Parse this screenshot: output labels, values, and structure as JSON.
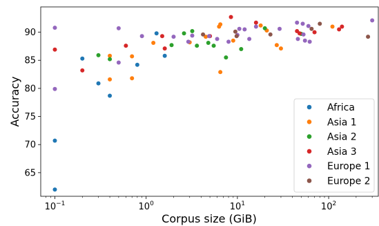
{
  "chart_data": {
    "type": "scatter",
    "title": "",
    "xlabel": "Corpus size (GiB)",
    "ylabel": "Accuracy",
    "xscale": "log",
    "xlim": [
      0.07,
      350
    ],
    "ylim": [
      60.8,
      94.5
    ],
    "xticks": [
      {
        "value": 0.1,
        "base": "10",
        "exp": "−1"
      },
      {
        "value": 1,
        "base": "10",
        "exp": "0"
      },
      {
        "value": 10,
        "base": "10",
        "exp": "1"
      },
      {
        "value": 100,
        "base": "10",
        "exp": "2"
      }
    ],
    "yticks": [
      65,
      70,
      75,
      80,
      85,
      90
    ],
    "grid": false,
    "legend_position": "lower right",
    "series": [
      {
        "name": "Africa",
        "color": "#1f77b4",
        "points": [
          [
            0.1,
            62.0
          ],
          [
            0.1,
            70.7
          ],
          [
            0.2,
            85.3
          ],
          [
            0.3,
            80.9
          ],
          [
            0.4,
            78.7
          ],
          [
            0.8,
            84.2
          ],
          [
            1.3,
            89.8
          ],
          [
            1.6,
            85.8
          ]
        ]
      },
      {
        "name": "Asia 1",
        "color": "#ff7f0e",
        "points": [
          [
            0.4,
            85.8
          ],
          [
            0.4,
            81.6
          ],
          [
            0.7,
            85.7
          ],
          [
            0.7,
            81.8
          ],
          [
            1.2,
            88.1
          ],
          [
            3.0,
            88.2
          ],
          [
            4.5,
            89.2
          ],
          [
            6.3,
            91.0
          ],
          [
            6.5,
            82.9
          ],
          [
            6.5,
            91.4
          ],
          [
            9.0,
            88.5
          ],
          [
            18.0,
            91.2
          ],
          [
            21.0,
            90.3
          ],
          [
            27.0,
            87.7
          ],
          [
            30.0,
            87.1
          ],
          [
            110.0,
            91.0
          ]
        ]
      },
      {
        "name": "Asia 2",
        "color": "#2ca02c",
        "points": [
          [
            0.3,
            85.9
          ],
          [
            0.4,
            85.2
          ],
          [
            1.9,
            87.7
          ],
          [
            2.6,
            89.8
          ],
          [
            3.2,
            90.2
          ],
          [
            3.6,
            87.6
          ],
          [
            4.8,
            88.1
          ],
          [
            5.5,
            87.6
          ],
          [
            7.5,
            85.5
          ],
          [
            11.0,
            87.0
          ],
          [
            20.0,
            90.7
          ],
          [
            50.0,
            89.7
          ]
        ]
      },
      {
        "name": "Asia 3",
        "color": "#d62728",
        "points": [
          [
            0.1,
            86.9
          ],
          [
            0.2,
            83.2
          ],
          [
            0.6,
            87.6
          ],
          [
            1.6,
            87.1
          ],
          [
            1.5,
            89.3
          ],
          [
            5.0,
            89.3
          ],
          [
            8.5,
            92.7
          ],
          [
            16.0,
            91.7
          ],
          [
            45.0,
            90.2
          ],
          [
            48.0,
            89.8
          ],
          [
            70.0,
            90.0
          ],
          [
            130.0,
            90.5
          ],
          [
            140.0,
            91.0
          ]
        ]
      },
      {
        "name": "Europe 1",
        "color": "#9467bd",
        "points": [
          [
            0.1,
            90.8
          ],
          [
            0.1,
            79.9
          ],
          [
            0.5,
            90.7
          ],
          [
            0.5,
            84.6
          ],
          [
            0.9,
            89.3
          ],
          [
            2.0,
            89.2
          ],
          [
            2.9,
            88.3
          ],
          [
            3.2,
            89.4
          ],
          [
            4.9,
            89.3
          ],
          [
            6.0,
            88.8
          ],
          [
            8.0,
            88.3
          ],
          [
            10.0,
            89.5
          ],
          [
            10.5,
            90.6
          ],
          [
            12.0,
            90.5
          ],
          [
            13.5,
            88.8
          ],
          [
            16.0,
            91.0
          ],
          [
            29.0,
            90.6
          ],
          [
            45.0,
            91.7
          ],
          [
            46.0,
            88.8
          ],
          [
            52.0,
            91.5
          ],
          [
            53.0,
            89.6
          ],
          [
            55.0,
            88.5
          ],
          [
            60.0,
            91.1
          ],
          [
            62.0,
            88.3
          ],
          [
            300.0,
            92.1
          ]
        ]
      },
      {
        "name": "Europe 2",
        "color": "#8c564b",
        "points": [
          [
            4.2,
            89.6
          ],
          [
            9.5,
            90.1
          ],
          [
            9.8,
            89.3
          ],
          [
            23.0,
            89.6
          ],
          [
            65.0,
            90.6
          ],
          [
            80.0,
            91.5
          ],
          [
            270.0,
            89.2
          ]
        ]
      }
    ]
  }
}
